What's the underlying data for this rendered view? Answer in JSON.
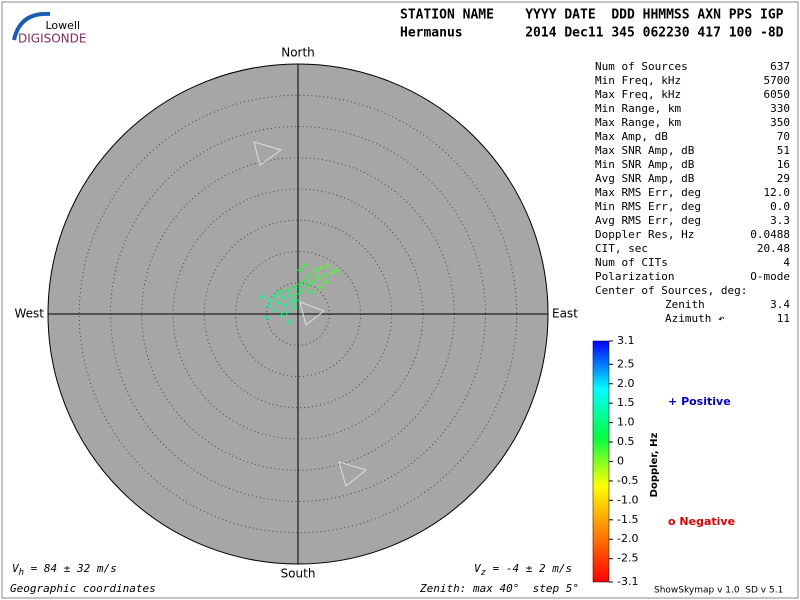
{
  "header": {
    "logo_top": "Lowell",
    "logo_bottom": "DIGISONDE",
    "line1": "STATION NAME    YYYY DATE  DDD HHMMSS AXN PPS IGP",
    "line2": "Hermanus        2014 Dec11 345 062230 417 100 -8D"
  },
  "stats": {
    "rows": [
      [
        "Num of Sources",
        "637"
      ],
      [
        "Min Freq, kHz",
        "5700"
      ],
      [
        "Max Freq, kHz",
        "6050"
      ],
      [
        "Min Range, km",
        "330"
      ],
      [
        "Max Range, km",
        "350"
      ],
      [
        "Max Amp, dB",
        "70"
      ],
      [
        "Max SNR Amp, dB",
        "51"
      ],
      [
        "Min SNR Amp, dB",
        "16"
      ],
      [
        "Avg SNR Amp, dB",
        "29"
      ],
      [
        "Max RMS Err, deg",
        "12.0"
      ],
      [
        "Min RMS Err, deg",
        "0.0"
      ],
      [
        "Avg RMS Err, deg",
        "3.3"
      ],
      [
        "Doppler Res, Hz",
        "0.0488"
      ],
      [
        "CIT, sec",
        "20.48"
      ],
      [
        "Num of CITs",
        "4"
      ],
      [
        "Polarization",
        "O-mode"
      ]
    ],
    "center_title": "Center of Sources, deg:",
    "center_rows": [
      [
        "Zenith",
        "3.4"
      ],
      [
        "Azimuth ↶",
        "11"
      ]
    ]
  },
  "footer": {
    "vh": {
      "symbol": "V",
      "subscript": "h",
      "text": " = 84 ± 32 m/s"
    },
    "vz": {
      "symbol": "V",
      "subscript": "z",
      "text": " = -4 ± 2 m/s"
    },
    "coords": "Geographic coordinates",
    "zenith": "Zenith: max 40°  step 5°",
    "version": "ShowSkymap v 1.0  SD v 5.1"
  },
  "chart_data": {
    "type": "scatter",
    "directions": {
      "north": "North",
      "south": "South",
      "east": "East",
      "west": "West"
    },
    "xlim": [
      -40,
      40
    ],
    "ylim": [
      -40,
      40
    ],
    "zenith_max": 40,
    "zenith_step": 5,
    "series": [
      {
        "name": "Positive",
        "marker": "+",
        "color": "#0000cc",
        "x": [
          -5.8,
          -4.5,
          -4.8,
          -3.7,
          -3.2,
          -2.9,
          -2.4,
          -2.1,
          -1.6,
          -1.3,
          -1.0,
          -0.5,
          -0.2,
          0.3,
          0.6,
          1.1,
          1.6,
          1.9,
          2.4,
          2.9,
          3.2,
          3.8,
          4.3,
          4.8,
          5.6,
          6.1,
          0.3,
          1.1,
          2.2,
          -1.8,
          -3.7,
          -5.1,
          -1.4,
          -2.6,
          -0.6,
          3.5,
          4.5,
          -0.3
        ],
        "y": [
          2.7,
          2.2,
          1.3,
          2.9,
          1.8,
          3.5,
          2.6,
          1.4,
          3.8,
          2.9,
          1.9,
          4.2,
          3.2,
          4.8,
          3.8,
          5.4,
          4.5,
          6.2,
          5.1,
          7.0,
          5.8,
          7.4,
          6.2,
          7.7,
          6.7,
          7.0,
          7.0,
          7.8,
          3.5,
          0.3,
          0.6,
          -0.6,
          -1.3,
          -0.2,
          1.0,
          4.2,
          5.1,
          2.2
        ],
        "doppler": [
          1.2,
          1.1,
          1.2,
          1.0,
          1.1,
          0.9,
          1.0,
          1.1,
          0.8,
          0.9,
          1.0,
          0.7,
          0.8,
          0.6,
          0.7,
          0.5,
          0.5,
          0.4,
          0.4,
          0.3,
          0.3,
          0.2,
          0.3,
          0.2,
          0.2,
          0.3,
          0.5,
          0.4,
          0.5,
          1.1,
          1.2,
          1.3,
          1.1,
          1.1,
          0.9,
          0.3,
          0.3,
          0.9
        ]
      },
      {
        "name": "Negative",
        "marker": "o",
        "color": "#dd0000",
        "x": [],
        "y": [],
        "doppler": []
      }
    ],
    "colorbar": {
      "label": "Doppler, Hz",
      "lim": [
        -3.1,
        3.1
      ],
      "colors": [
        "#ff0000",
        "#ff8000",
        "#ffff00",
        "#00ff40",
        "#00ffff",
        "#0000ff"
      ],
      "ticks": [
        3.1,
        2.5,
        {
          "value": 2,
          "label": "2.0"
        },
        1.5,
        {
          "value": 1,
          "label": "1.0"
        },
        0.5,
        0,
        -0.5,
        {
          "value": -1,
          "label": "-1.0"
        },
        -1.5,
        {
          "value": -2,
          "label": "-2.0"
        },
        -2.5,
        -3.1
      ]
    }
  }
}
